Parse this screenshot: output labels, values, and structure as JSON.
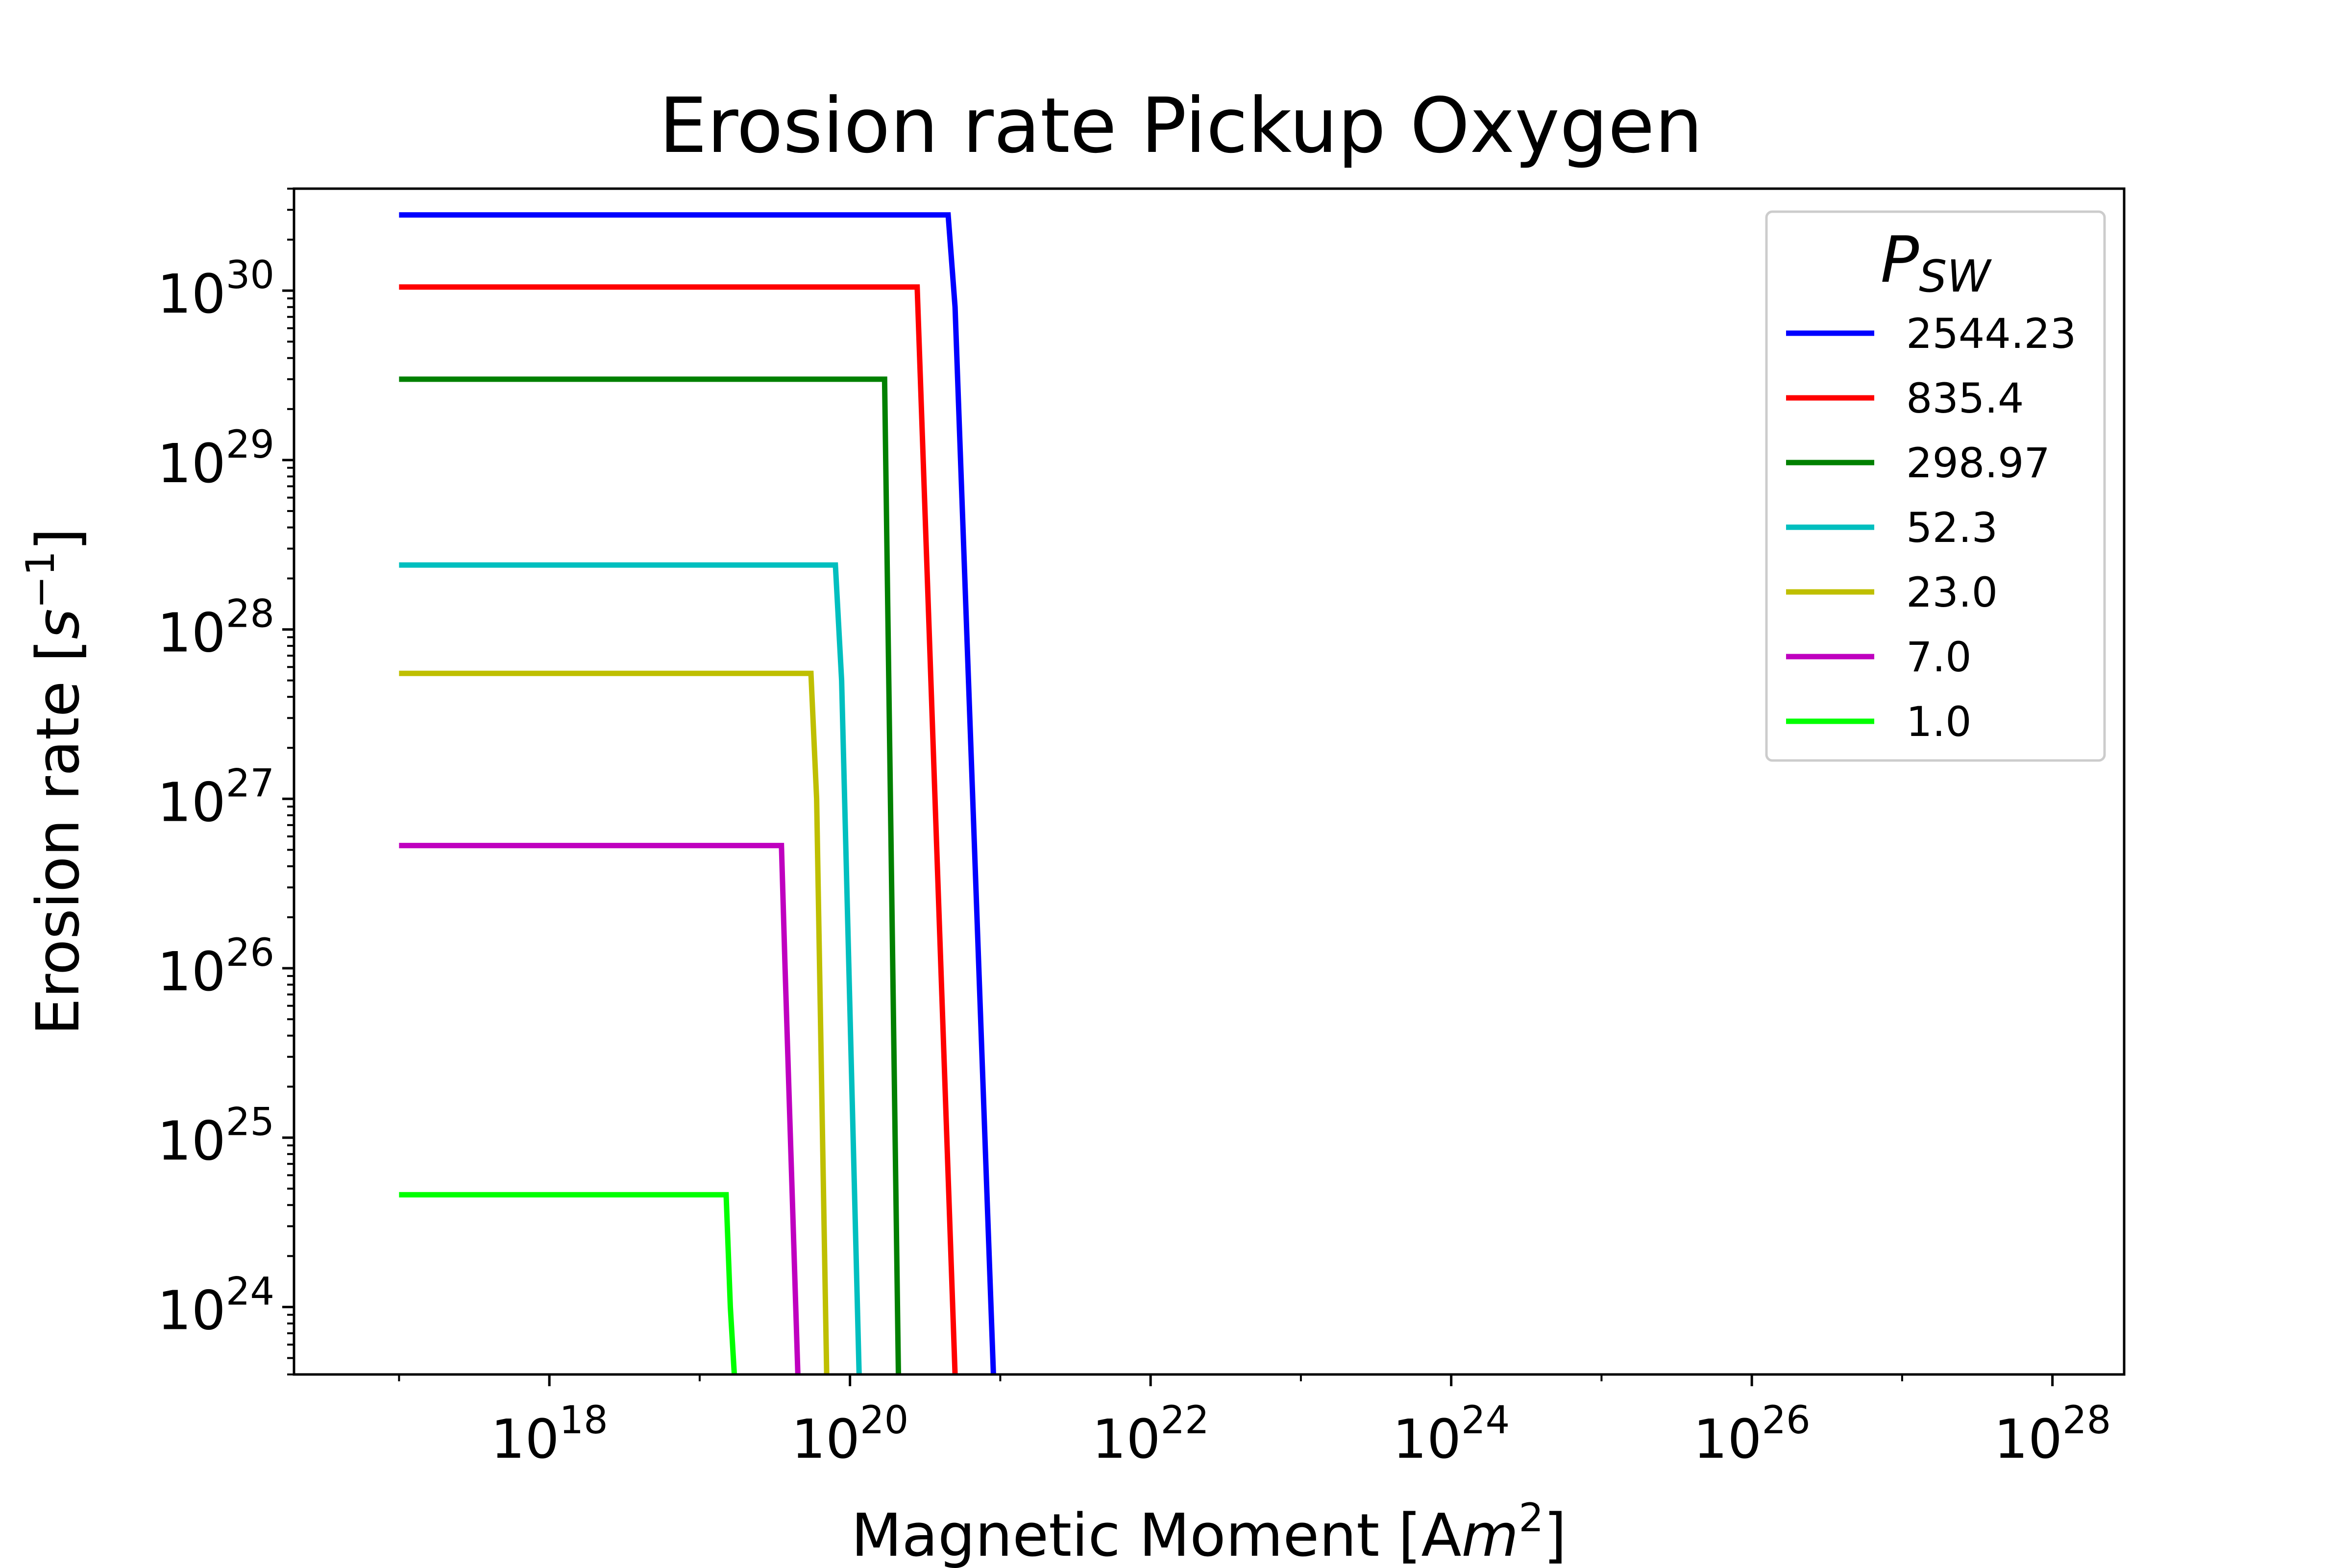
{
  "chart_data": {
    "type": "line",
    "title": "Erosion rate Pickup Oxygen",
    "xlabel": "Magnetic Moment [Am²]",
    "xlabel_main": "Magnetic Moment [A",
    "xlabel_italic": "m",
    "xlabel_sup": "2",
    "xlabel_end": "]",
    "ylabel": "Erosion rate [s⁻¹]",
    "ylabel_main": "Erosion rate [",
    "ylabel_italic": "s",
    "ylabel_sup": "−1",
    "ylabel_end": "]",
    "xscale": "log",
    "yscale": "log",
    "xlim": [
      2e+16,
      3e+28
    ],
    "ylim": [
      4e+23,
      4e+30
    ],
    "xticks": [
      {
        "base": "10",
        "exp": "18",
        "value": 1e+18
      },
      {
        "base": "10",
        "exp": "20",
        "value": 1e+20
      },
      {
        "base": "10",
        "exp": "22",
        "value": 1e+22
      },
      {
        "base": "10",
        "exp": "24",
        "value": 1e+24
      },
      {
        "base": "10",
        "exp": "26",
        "value": 1e+26
      },
      {
        "base": "10",
        "exp": "28",
        "value": 1e+28
      }
    ],
    "yticks": [
      {
        "base": "10",
        "exp": "24",
        "value": 1e+24
      },
      {
        "base": "10",
        "exp": "25",
        "value": 1e+25
      },
      {
        "base": "10",
        "exp": "26",
        "value": 1e+26
      },
      {
        "base": "10",
        "exp": "27",
        "value": 1e+27
      },
      {
        "base": "10",
        "exp": "28",
        "value": 1e+28
      },
      {
        "base": "10",
        "exp": "29",
        "value": 1e+29
      },
      {
        "base": "10",
        "exp": "30",
        "value": 1e+30
      }
    ],
    "grid": false,
    "legend": {
      "title_main": "P",
      "title_sub": "SW",
      "placement": "top-right"
    },
    "series": [
      {
        "name": "2544.23",
        "color": "#0000ff",
        "points": [
          [
            1e+17,
            2.8e+30
          ],
          [
            4.5e+20,
            2.8e+30
          ],
          [
            5e+20,
            8e+29
          ],
          [
            9e+20,
            4e+23
          ]
        ]
      },
      {
        "name": "835.4",
        "color": "#ff0000",
        "points": [
          [
            1e+17,
            1.05e+30
          ],
          [
            2.8e+20,
            1.05e+30
          ],
          [
            5e+20,
            4e+23
          ]
        ]
      },
      {
        "name": "298.97",
        "color": "#008000",
        "points": [
          [
            1e+17,
            3e+29
          ],
          [
            1.7e+20,
            3e+29
          ],
          [
            2.1e+20,
            4e+23
          ]
        ]
      },
      {
        "name": "52.3",
        "color": "#00bfbf",
        "points": [
          [
            1e+17,
            2.4e+28
          ],
          [
            8e+19,
            2.4e+28
          ],
          [
            8.8e+19,
            5e+27
          ],
          [
            1.15e+20,
            4e+23
          ]
        ]
      },
      {
        "name": "23.0",
        "color": "#bfbf00",
        "points": [
          [
            1e+17,
            5.5e+27
          ],
          [
            5.5e+19,
            5.5e+27
          ],
          [
            6e+19,
            1e+27
          ],
          [
            7e+19,
            4e+23
          ]
        ]
      },
      {
        "name": "7.0",
        "color": "#bf00bf",
        "points": [
          [
            1e+17,
            5.3e+26
          ],
          [
            3.5e+19,
            5.3e+26
          ],
          [
            3.7e+19,
            1e+26
          ],
          [
            4.5e+19,
            4e+23
          ]
        ]
      },
      {
        "name": "1.0",
        "color": "#00ff00",
        "points": [
          [
            1e+17,
            4.6e+24
          ],
          [
            1.5e+19,
            4.6e+24
          ],
          [
            1.6e+19,
            1e+24
          ],
          [
            1.7e+19,
            4e+23
          ]
        ]
      }
    ]
  }
}
